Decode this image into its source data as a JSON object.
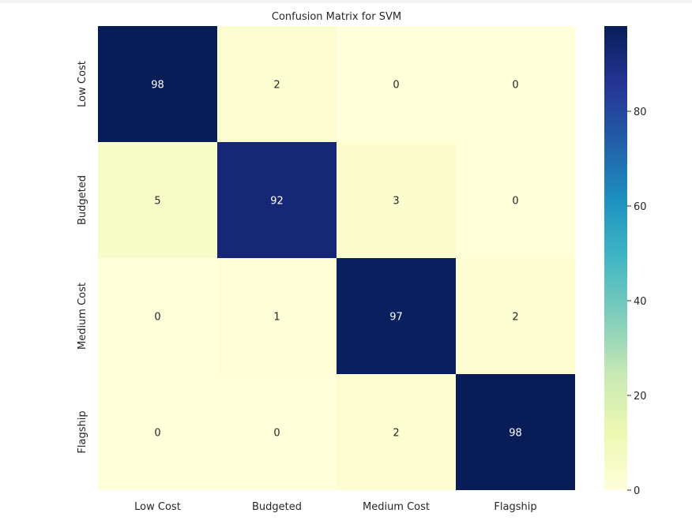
{
  "chart_data": {
    "type": "heatmap",
    "title": "Confusion Matrix for SVM",
    "xlabel": "",
    "ylabel": "",
    "x_categories": [
      "Low Cost",
      "Budgeted",
      "Medium Cost",
      "Flagship"
    ],
    "y_categories": [
      "Low Cost",
      "Budgeted",
      "Medium Cost",
      "Flagship"
    ],
    "values": [
      [
        98,
        2,
        0,
        0
      ],
      [
        5,
        92,
        3,
        0
      ],
      [
        0,
        1,
        97,
        2
      ],
      [
        0,
        0,
        2,
        98
      ]
    ],
    "annotations": true,
    "colormap": "YlGnBu",
    "colorbar": {
      "ticks": [
        0,
        20,
        40,
        60,
        80
      ],
      "range": [
        0,
        98
      ]
    },
    "grid": false
  }
}
